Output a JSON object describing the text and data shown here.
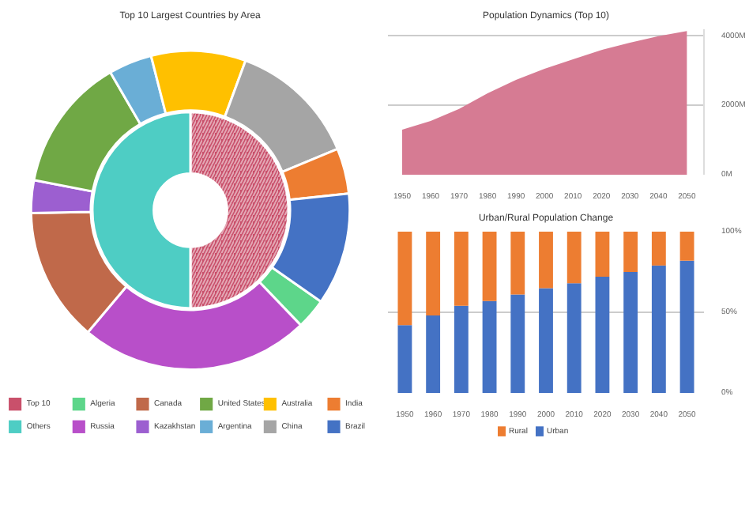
{
  "chart_data": [
    {
      "type": "donut",
      "title": "Top 10 Largest Countries by Area",
      "categories": [
        "Top 10",
        "Others",
        "Algeria",
        "Russia",
        "Canada",
        "Kazakhstan",
        "United States",
        "Argentina",
        "Australia",
        "China",
        "India",
        "Brazil"
      ],
      "colors": [
        "#c9506b",
        "#4ecdc4",
        "#5dd68a",
        "#b84fc9",
        "#c0694a",
        "#9c5fd0",
        "#70a845",
        "#6aaed6",
        "#ffc000",
        "#a5a5a5",
        "#ed7d31",
        "#4472c4"
      ],
      "series": [
        {
          "values": [
            50,
            50,
            null,
            null,
            null,
            null,
            null,
            null,
            null,
            null,
            null,
            null
          ]
        },
        {
          "values": [
            null,
            null,
            3.1,
            23.3,
            13.6,
            3.3,
            13.6,
            4.4,
            9.6,
            13.1,
            4.6,
            11.4
          ]
        }
      ],
      "legend": "bottom"
    },
    {
      "type": "area",
      "title": "Population Dynamics (Top 10)",
      "x": [
        1950,
        1960,
        1970,
        1980,
        1990,
        2000,
        2010,
        2020,
        2030,
        2040,
        2050
      ],
      "values": [
        1300,
        1550,
        1900,
        2350,
        2740,
        3060,
        3330,
        3600,
        3810,
        4000,
        4150
      ],
      "color": "#d67b93",
      "xlim": [
        1945,
        2056
      ],
      "ylim": [
        0,
        4200
      ],
      "xticks": [
        1950,
        1960,
        1970,
        1980,
        1990,
        2000,
        2010,
        2020,
        2030,
        2040,
        2050
      ],
      "yticks": [
        {
          "value": 0,
          "label": "0M"
        },
        {
          "value": 2000,
          "label": "2000M"
        },
        {
          "value": 4000,
          "label": "4000M"
        }
      ],
      "grid": "y"
    },
    {
      "type": "bar",
      "title": "Urban/Rural Population Change",
      "stacked": true,
      "categories": [
        "1950",
        "1960",
        "1970",
        "1980",
        "1990",
        "2000",
        "2010",
        "2020",
        "2030",
        "2040",
        "2050"
      ],
      "series": [
        {
          "name": "Urban",
          "color": "#4472c4",
          "values": [
            42,
            48,
            54,
            57,
            61,
            65,
            68,
            72,
            75,
            79,
            82
          ]
        },
        {
          "name": "Rural",
          "color": "#ed7d31",
          "values": [
            58,
            52,
            46,
            43,
            39,
            35,
            32,
            28,
            25,
            21,
            18
          ]
        }
      ],
      "ylim": [
        0,
        100
      ],
      "yticks": [
        {
          "value": 0,
          "label": "0%"
        },
        {
          "value": 50,
          "label": "50%"
        },
        {
          "value": 100,
          "label": "100%"
        }
      ],
      "grid": "y",
      "legend": "bottom"
    }
  ]
}
